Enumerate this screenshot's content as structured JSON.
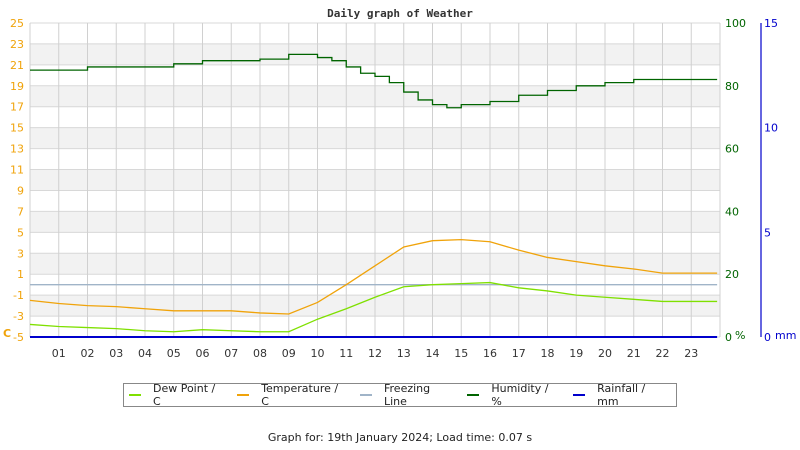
{
  "chart_data": {
    "type": "line",
    "title": "Daily graph of Weather",
    "xlabel": "",
    "x_ticks": [
      "01",
      "02",
      "03",
      "04",
      "05",
      "06",
      "07",
      "08",
      "09",
      "10",
      "11",
      "12",
      "13",
      "14",
      "15",
      "16",
      "17",
      "18",
      "19",
      "20",
      "21",
      "22",
      "23"
    ],
    "axes": {
      "left": {
        "label": "C",
        "ticks": [
          "25",
          "23",
          "21",
          "19",
          "17",
          "15",
          "13",
          "11",
          "9",
          "7",
          "5",
          "3",
          "1",
          "-1",
          "-3",
          "-5"
        ],
        "range": [
          -5,
          25
        ],
        "color": "#f0a30a"
      },
      "right_humidity": {
        "label": "%",
        "ticks": [
          "100",
          "80",
          "60",
          "40",
          "20",
          "0"
        ],
        "range": [
          0,
          100
        ],
        "color": "#006400"
      },
      "right_rain": {
        "label": "mm",
        "ticks": [
          "15",
          "10",
          "5",
          "0"
        ],
        "range": [
          0,
          15
        ],
        "color": "#0000cc"
      }
    },
    "grid": true,
    "series": [
      {
        "name": "Dew Point / C",
        "axis": "left",
        "color": "#7fe000",
        "x": [
          0,
          1,
          2,
          3,
          4,
          5,
          6,
          7,
          8,
          9,
          10,
          11,
          12,
          13,
          14,
          15,
          16,
          17,
          18,
          19,
          20,
          21,
          22,
          23.9
        ],
        "values": [
          -3.8,
          -4.0,
          -4.1,
          -4.2,
          -4.4,
          -4.5,
          -4.3,
          -4.4,
          -4.5,
          -4.5,
          -3.3,
          -2.3,
          -1.2,
          -0.2,
          0.0,
          0.1,
          0.2,
          -0.3,
          -0.6,
          -1.0,
          -1.2,
          -1.4,
          -1.6,
          -1.6
        ]
      },
      {
        "name": "Temperature / C",
        "axis": "left",
        "color": "#f0a30a",
        "x": [
          0,
          1,
          2,
          3,
          4,
          5,
          6,
          7,
          8,
          9,
          10,
          11,
          12,
          13,
          14,
          15,
          16,
          17,
          18,
          19,
          20,
          21,
          22,
          23.9
        ],
        "values": [
          -1.5,
          -1.8,
          -2.0,
          -2.1,
          -2.3,
          -2.5,
          -2.5,
          -2.5,
          -2.7,
          -2.8,
          -1.7,
          0.0,
          1.8,
          3.6,
          4.2,
          4.3,
          4.1,
          3.3,
          2.6,
          2.2,
          1.8,
          1.5,
          1.1,
          1.1
        ]
      },
      {
        "name": "Freezing Line",
        "axis": "left",
        "color": "#a0b4c8",
        "x": [
          0,
          23.9
        ],
        "values": [
          0,
          0
        ]
      },
      {
        "name": "Humidity / %",
        "axis": "right_humidity",
        "color": "#006400",
        "x": [
          0,
          1,
          2,
          3,
          4,
          5,
          6,
          7,
          8,
          9,
          10,
          10.5,
          11,
          11.5,
          12,
          12.5,
          13,
          13.5,
          14,
          14.5,
          15,
          16,
          17,
          18,
          19,
          20,
          21,
          22,
          23.9
        ],
        "values": [
          85,
          85,
          86,
          86,
          86,
          87,
          88,
          88,
          88.5,
          90,
          89,
          88,
          86,
          84,
          83,
          81,
          78,
          75.5,
          74,
          73,
          74,
          75,
          77,
          78.5,
          80,
          81,
          82,
          82,
          82
        ]
      },
      {
        "name": "Rainfall / mm",
        "axis": "right_rain",
        "color": "#0000cc",
        "x": [
          0,
          23.9
        ],
        "values": [
          0,
          0
        ]
      }
    ],
    "legend_position": "bottom"
  },
  "legend": [
    {
      "label": "Dew Point / C",
      "color": "#7fe000"
    },
    {
      "label": "Temperature / C",
      "color": "#f0a30a"
    },
    {
      "label": "Freezing Line",
      "color": "#a0b4c8"
    },
    {
      "label": "Humidity / %",
      "color": "#006400"
    },
    {
      "label": "Rainfall / mm",
      "color": "#0000cc"
    }
  ],
  "footer": "Graph for: 19th January 2024; Load time: 0.07 s"
}
